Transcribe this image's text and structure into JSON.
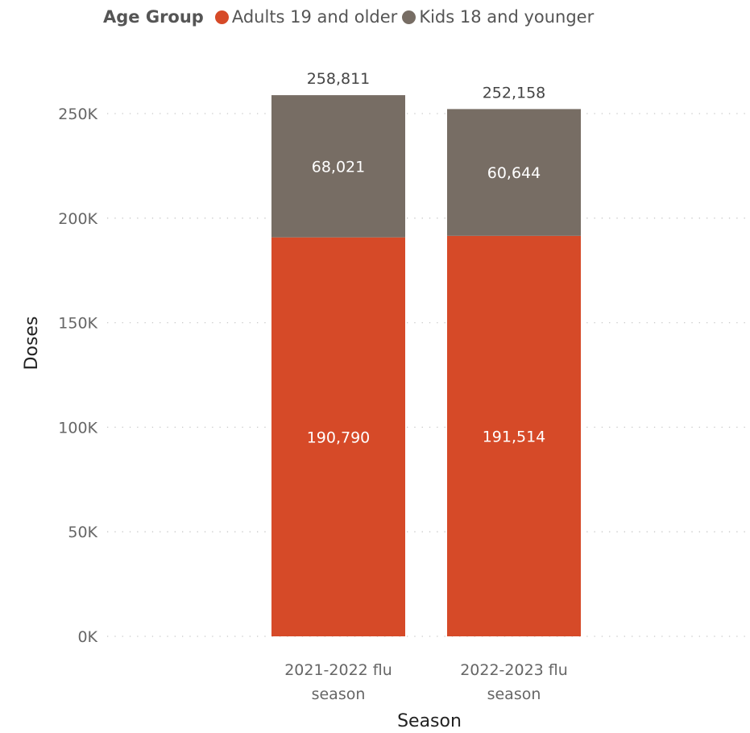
{
  "legend": {
    "title": "Age Group",
    "items": [
      {
        "label": "Adults 19 and older",
        "color": "#D64A28"
      },
      {
        "label": "Kids 18 and younger",
        "color": "#776D64"
      }
    ]
  },
  "chart_data": {
    "type": "bar",
    "stacked": true,
    "categories": [
      [
        "2021-2022 flu",
        "season"
      ],
      [
        "2022-2023 flu",
        "season"
      ]
    ],
    "series": [
      {
        "name": "Adults 19 and older",
        "color": "#D64A28",
        "values": [
          190790,
          191514
        ],
        "labels": [
          "190,790",
          "191,514"
        ]
      },
      {
        "name": "Kids 18 and younger",
        "color": "#776D64",
        "values": [
          68021,
          60644
        ],
        "labels": [
          "68,021",
          "60,644"
        ]
      }
    ],
    "totals": [
      258811,
      252158
    ],
    "total_labels": [
      "258,811",
      "252,158"
    ],
    "xlabel": "Season",
    "ylabel": "Doses",
    "ylim": [
      0,
      260000
    ],
    "yticks": [
      0,
      50000,
      100000,
      150000,
      200000,
      250000
    ],
    "ytick_labels": [
      "0K",
      "50K",
      "100K",
      "150K",
      "200K",
      "250K"
    ],
    "grid": true,
    "legend_position": "top"
  }
}
